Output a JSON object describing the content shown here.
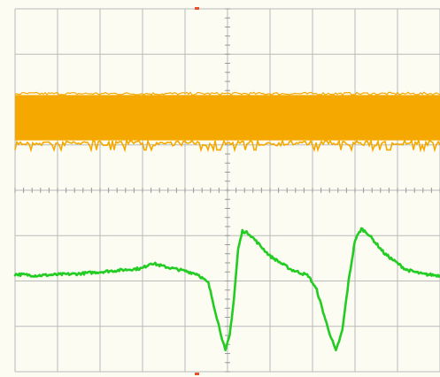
{
  "chart_data": {
    "type": "line",
    "grid": true,
    "grid_divisions": {
      "x": 10,
      "y": 8
    },
    "xlim": [
      0,
      10
    ],
    "ylim": [
      -4,
      4
    ],
    "background_color": "#fcfcf2",
    "grid_color": "#b9b9b9",
    "center_axis_color": "#9a9a9a",
    "trigger_marker_color": "#e8502a",
    "series": [
      {
        "color": "#f5a800",
        "style": "dense-noise-band",
        "band_top_div": 2.1,
        "band_bottom_div": 1.1,
        "spike_depth_div": 0.15
      },
      {
        "color": "#22cc22",
        "style": "waveform",
        "points": [
          [
            0.0,
            -1.85
          ],
          [
            0.5,
            -1.88
          ],
          [
            1.0,
            -1.86
          ],
          [
            1.5,
            -1.84
          ],
          [
            2.0,
            -1.8
          ],
          [
            2.5,
            -1.76
          ],
          [
            3.0,
            -1.72
          ],
          [
            3.2,
            -1.6
          ],
          [
            3.5,
            -1.68
          ],
          [
            4.0,
            -1.78
          ],
          [
            4.3,
            -1.85
          ],
          [
            4.55,
            -2.05
          ],
          [
            4.8,
            -3.0
          ],
          [
            4.95,
            -3.55
          ],
          [
            5.05,
            -3.2
          ],
          [
            5.15,
            -2.4
          ],
          [
            5.25,
            -1.3
          ],
          [
            5.35,
            -0.9
          ],
          [
            5.5,
            -0.95
          ],
          [
            6.0,
            -1.45
          ],
          [
            6.5,
            -1.75
          ],
          [
            6.9,
            -1.88
          ],
          [
            7.1,
            -2.2
          ],
          [
            7.35,
            -3.0
          ],
          [
            7.55,
            -3.55
          ],
          [
            7.7,
            -3.1
          ],
          [
            7.85,
            -2.0
          ],
          [
            8.0,
            -1.1
          ],
          [
            8.15,
            -0.85
          ],
          [
            8.3,
            -0.95
          ],
          [
            8.7,
            -1.4
          ],
          [
            9.2,
            -1.75
          ],
          [
            9.6,
            -1.85
          ],
          [
            10.0,
            -1.88
          ]
        ]
      }
    ]
  }
}
